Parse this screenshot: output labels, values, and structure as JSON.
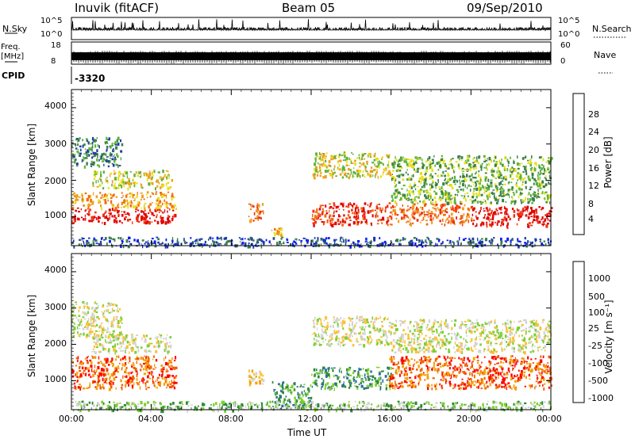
{
  "header": {
    "station": "Inuvik (fitACF)",
    "beam": "Beam 05",
    "date": "09/Sep/2010"
  },
  "strips": {
    "nsky_label": "N.Sky",
    "nsearch_label": "N.Search",
    "nsky_ticks": [
      "10^5",
      "10^0"
    ],
    "nsearch_ticks": [
      "10^5",
      "10^0"
    ],
    "freq_label_1": "Freq.",
    "freq_label_2": "[MHz]",
    "freq_ticks": [
      "18",
      "8"
    ],
    "nave_label": "Nave",
    "nave_ticks": [
      "60",
      "0"
    ],
    "cpid_label": "CPID",
    "cpid_value": "-3320"
  },
  "colors": {
    "power": [
      "#0a1ef5",
      "#1f3fa0",
      "#3a7f4a",
      "#5fb33b",
      "#e8e01a",
      "#f0a020",
      "#f36a10",
      "#ef3010",
      "#e00000"
    ],
    "velocity": [
      "#ff0000",
      "#f06000",
      "#f5a000",
      "#f8c23a",
      "#d3d3d3",
      "#7ccf32",
      "#2e8b3a",
      "#2a6aa0",
      "#1a3aa8"
    ]
  },
  "chart_data": [
    {
      "type": "heatmap",
      "quantity": "power",
      "ylabel": "Slant Range [km]",
      "ylim": [
        200,
        4500
      ],
      "yticks": [
        "4000",
        "3000",
        "2000",
        "1000"
      ],
      "xlim_hours": [
        0,
        24
      ],
      "colorbar": {
        "label": "Power [dB]",
        "ticks": [
          "28",
          "24",
          "20",
          "16",
          "12",
          "8",
          "4"
        ]
      },
      "regions": [
        {
          "t0": 0.0,
          "t1": 5.2,
          "r0": 850,
          "r1": 1250,
          "level": 8
        },
        {
          "t0": 0.0,
          "t1": 5.2,
          "r0": 1250,
          "r1": 1700,
          "level": 5
        },
        {
          "t0": 0.0,
          "t1": 2.5,
          "r0": 2400,
          "r1": 3200,
          "level": 2
        },
        {
          "t0": 1.0,
          "t1": 5.0,
          "r0": 1800,
          "r1": 2300,
          "level": 4
        },
        {
          "t0": 8.8,
          "t1": 9.6,
          "r0": 900,
          "r1": 1400,
          "level": 6
        },
        {
          "t0": 10.0,
          "t1": 10.5,
          "r0": 500,
          "r1": 700,
          "level": 5
        },
        {
          "t0": 12.0,
          "t1": 15.8,
          "r0": 800,
          "r1": 1400,
          "level": 7
        },
        {
          "t0": 12.0,
          "t1": 16.0,
          "r0": 2100,
          "r1": 2800,
          "level": 4
        },
        {
          "t0": 15.8,
          "t1": 20.0,
          "r0": 800,
          "r1": 1400,
          "level": 6
        },
        {
          "t0": 16.0,
          "t1": 24.0,
          "r0": 1400,
          "r1": 2700,
          "level": 3
        },
        {
          "t0": 20.0,
          "t1": 24.0,
          "r0": 750,
          "r1": 1300,
          "level": 8
        },
        {
          "t0": 0.0,
          "t1": 24.0,
          "r0": 200,
          "r1": 450,
          "level": 1
        }
      ]
    },
    {
      "type": "heatmap",
      "quantity": "velocity",
      "ylabel": "Slant Range [km]",
      "xlabel": "Time UT",
      "ylim": [
        200,
        4500
      ],
      "yticks": [
        "4000",
        "3000",
        "2000",
        "1000"
      ],
      "xticks": [
        "00:00",
        "04:00",
        "08:00",
        "12:00",
        "16:00",
        "20:00",
        "00:00"
      ],
      "xlim_hours": [
        0,
        24
      ],
      "colorbar": {
        "label": "Velocity [m s⁻¹]",
        "ticks": [
          "1000",
          "500",
          "100",
          "25",
          "-25",
          "-100",
          "-500",
          "-1000"
        ]
      },
      "regions": [
        {
          "t0": 0.0,
          "t1": 5.2,
          "r0": 800,
          "r1": 1700,
          "level": 1
        },
        {
          "t0": 0.0,
          "t1": 2.5,
          "r0": 2200,
          "r1": 3200,
          "level": 4
        },
        {
          "t0": 1.0,
          "t1": 5.0,
          "r0": 1800,
          "r1": 2300,
          "level": 4
        },
        {
          "t0": 8.8,
          "t1": 9.6,
          "r0": 900,
          "r1": 1400,
          "level": 3
        },
        {
          "t0": 10.0,
          "t1": 12.0,
          "r0": 300,
          "r1": 1000,
          "level": 6
        },
        {
          "t0": 12.0,
          "t1": 16.0,
          "r0": 800,
          "r1": 1400,
          "level": 6
        },
        {
          "t0": 12.0,
          "t1": 16.0,
          "r0": 2000,
          "r1": 2800,
          "level": 4
        },
        {
          "t0": 15.8,
          "t1": 24.0,
          "r0": 800,
          "r1": 1700,
          "level": 1
        },
        {
          "t0": 16.0,
          "t1": 24.0,
          "r0": 1800,
          "r1": 2700,
          "level": 4
        },
        {
          "t0": 0.0,
          "t1": 24.0,
          "r0": 200,
          "r1": 450,
          "level": 5
        }
      ]
    }
  ]
}
